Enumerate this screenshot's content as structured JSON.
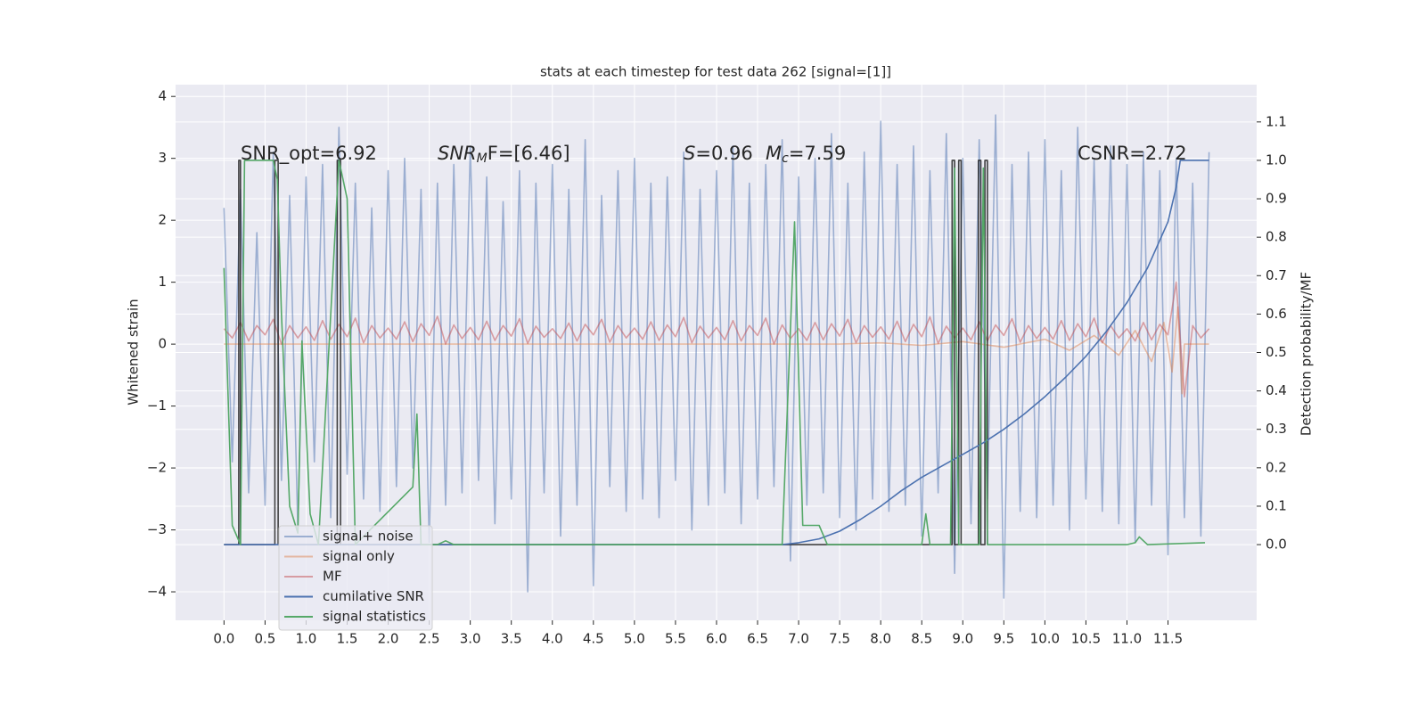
{
  "chart_data": {
    "type": "line",
    "title": "stats at each timestep for test data 262 [signal=[1]]",
    "ylabel": "Whitened strain",
    "y2label": "Detection probability/MF",
    "grid": true,
    "legend": "lower left",
    "xlim": [
      -0.59,
      12.58
    ],
    "ylim": [
      -4.46,
      4.19
    ],
    "y2lim": [
      -0.197,
      1.197
    ],
    "xticks": [
      {
        "value": 0,
        "label": "0.0"
      },
      {
        "value": 0.5,
        "label": "0.5"
      },
      {
        "value": 1,
        "label": "1.0"
      },
      {
        "value": 1.5,
        "label": "1.5"
      },
      {
        "value": 2,
        "label": "2.0"
      },
      {
        "value": 2.5,
        "label": "2.5"
      },
      {
        "value": 3,
        "label": "3.0"
      },
      {
        "value": 3.5,
        "label": "3.5"
      },
      {
        "value": 4,
        "label": "4.0"
      },
      {
        "value": 4.5,
        "label": "4.5"
      },
      {
        "value": 5,
        "label": "5.0"
      },
      {
        "value": 5.5,
        "label": "5.5"
      },
      {
        "value": 6,
        "label": "6.0"
      },
      {
        "value": 6.5,
        "label": "6.5"
      },
      {
        "value": 7,
        "label": "7.0"
      },
      {
        "value": 7.5,
        "label": "7.5"
      },
      {
        "value": 8,
        "label": "8.0"
      },
      {
        "value": 8.5,
        "label": "8.5"
      },
      {
        "value": 9,
        "label": "9.0"
      },
      {
        "value": 9.5,
        "label": "9.5"
      },
      {
        "value": 10,
        "label": "10.0"
      },
      {
        "value": 10.5,
        "label": "10.5"
      },
      {
        "value": 11,
        "label": "11.0"
      },
      {
        "value": 11.5,
        "label": "11.5"
      }
    ],
    "yticks": [
      {
        "value": -4,
        "label": "−4"
      },
      {
        "value": -3,
        "label": "−3"
      },
      {
        "value": -2,
        "label": "−2"
      },
      {
        "value": -1,
        "label": "−1"
      },
      0,
      1,
      2,
      3,
      4
    ],
    "y2ticks": [
      {
        "value": 0,
        "label": "0.0"
      },
      {
        "value": 0.1,
        "label": "0.1"
      },
      {
        "value": 0.2,
        "label": "0.2"
      },
      {
        "value": 0.3,
        "label": "0.3"
      },
      {
        "value": 0.4,
        "label": "0.4"
      },
      {
        "value": 0.5,
        "label": "0.5"
      },
      {
        "value": 0.6,
        "label": "0.6"
      },
      {
        "value": 0.7,
        "label": "0.7"
      },
      {
        "value": 0.8,
        "label": "0.8"
      },
      {
        "value": 0.9,
        "label": "0.9"
      },
      {
        "value": 1,
        "label": "1.0"
      },
      {
        "value": 1.1,
        "label": "1.1"
      }
    ],
    "annotations": [
      {
        "parts": [
          {
            "text": "SNR_opt=6.92"
          }
        ]
      },
      {
        "parts": [
          {
            "text": "SNR",
            "italic": true
          },
          {
            "text": "M",
            "italic": true,
            "sub": true
          },
          {
            "text": "F=[6.46]"
          }
        ]
      },
      {
        "parts": [
          {
            "text": "S",
            "italic": true
          },
          {
            "text": "=0.96"
          }
        ]
      },
      {
        "parts": [
          {
            "text": "M",
            "italic": true
          },
          {
            "text": "c",
            "italic": true,
            "sub": true
          },
          {
            "text": "=7.59"
          }
        ]
      },
      {
        "parts": [
          {
            "text": "CSNR=2.72"
          }
        ]
      }
    ],
    "x": [
      0,
      0.1,
      0.2,
      0.3,
      0.4,
      0.5,
      0.6,
      0.7,
      0.8,
      0.9,
      1,
      1.1,
      1.2,
      1.3,
      1.4,
      1.5,
      1.6,
      1.7,
      1.8,
      1.9,
      2,
      2.1,
      2.2,
      2.3,
      2.4,
      2.5,
      2.6,
      2.7,
      2.8,
      2.9,
      3,
      3.1,
      3.2,
      3.3,
      3.4,
      3.5,
      3.6,
      3.7,
      3.8,
      3.9,
      4,
      4.1,
      4.2,
      4.3,
      4.4,
      4.5,
      4.6,
      4.7,
      4.8,
      4.9,
      5,
      5.1,
      5.2,
      5.3,
      5.4,
      5.5,
      5.6,
      5.7,
      5.8,
      5.9,
      6,
      6.1,
      6.2,
      6.3,
      6.4,
      6.5,
      6.6,
      6.7,
      6.8,
      6.9,
      7,
      7.1,
      7.2,
      7.3,
      7.4,
      7.5,
      7.6,
      7.7,
      7.8,
      7.9,
      8,
      8.1,
      8.2,
      8.3,
      8.4,
      8.5,
      8.6,
      8.7,
      8.8,
      8.9,
      9,
      9.1,
      9.2,
      9.3,
      9.4,
      9.5,
      9.6,
      9.7,
      9.8,
      9.9,
      10,
      10.1,
      10.2,
      10.3,
      10.4,
      10.5,
      10.6,
      10.7,
      10.8,
      10.9,
      11,
      11.1,
      11.2,
      11.3,
      11.4,
      11.5,
      11.6,
      11.7,
      11.8,
      11.9,
      12
    ],
    "series": [
      {
        "name": "signal+ noise",
        "color": "#4c72b0",
        "opacity": 0.5,
        "values": [
          2.2,
          -1.9,
          2.5,
          -2.4,
          1.8,
          -2.6,
          3.1,
          -2.2,
          2.4,
          -3.0,
          2.7,
          -1.9,
          2.9,
          -2.8,
          3.5,
          -2.1,
          2.6,
          -2.5,
          2.2,
          -2.7,
          2.8,
          -2.3,
          3.0,
          -2.0,
          2.5,
          -3.2,
          2.6,
          -2.6,
          2.9,
          -2.4,
          3.2,
          -2.2,
          2.7,
          -2.9,
          2.3,
          -2.5,
          2.8,
          -4.0,
          2.6,
          -2.4,
          2.9,
          -3.1,
          2.5,
          -2.6,
          3.3,
          -3.9,
          2.4,
          -2.3,
          2.8,
          -2.7,
          3.0,
          -2.5,
          2.6,
          -2.8,
          2.7,
          -2.2,
          3.1,
          -3.0,
          2.5,
          -2.6,
          2.8,
          -2.4,
          3.2,
          -2.9,
          2.6,
          -2.5,
          2.9,
          -2.3,
          3.3,
          -3.5,
          2.7,
          -2.6,
          3.0,
          -2.4,
          3.4,
          -2.8,
          2.6,
          -3.0,
          3.1,
          -2.5,
          3.6,
          -2.7,
          2.9,
          -2.6,
          3.2,
          -3.1,
          2.8,
          -2.4,
          3.4,
          -3.7,
          3.0,
          -2.9,
          3.3,
          -2.5,
          3.7,
          -4.1,
          2.9,
          -2.7,
          3.1,
          -2.8,
          3.3,
          -2.6,
          2.8,
          -3.0,
          3.5,
          -2.5,
          3.0,
          -2.7,
          3.2,
          -2.9,
          2.9,
          -3.2,
          3.1,
          -2.6,
          2.8,
          -3.4,
          3.0,
          -2.8,
          2.6,
          -3.1,
          3.1
        ]
      },
      {
        "name": "signal only",
        "color": "#dd8452",
        "opacity": 0.5,
        "x": [
          0,
          7.5,
          8,
          8.5,
          9,
          9.5,
          10,
          10.3,
          10.6,
          10.9,
          11.1,
          11.3,
          11.45,
          11.55,
          11.62,
          11.67,
          11.7,
          12
        ],
        "values": [
          0,
          0,
          0.02,
          -0.02,
          0.04,
          -0.05,
          0.08,
          -0.1,
          0.14,
          -0.18,
          0.22,
          -0.28,
          0.35,
          -0.45,
          0.6,
          -0.8,
          0,
          0
        ]
      },
      {
        "name": "MF",
        "color": "#c44e52",
        "opacity": 0.5,
        "values": [
          0.25,
          0.1,
          0.35,
          0.05,
          0.3,
          0.15,
          0.4,
          0.0,
          0.3,
          0.1,
          0.28,
          0.06,
          0.38,
          0.08,
          0.32,
          0.12,
          0.42,
          0.02,
          0.3,
          0.1,
          0.26,
          0.08,
          0.36,
          0.04,
          0.33,
          0.14,
          0.45,
          0.0,
          0.31,
          0.09,
          0.27,
          0.07,
          0.37,
          0.06,
          0.3,
          0.13,
          0.41,
          0.01,
          0.29,
          0.11,
          0.25,
          0.09,
          0.34,
          0.05,
          0.32,
          0.15,
          0.4,
          0.03,
          0.3,
          0.1,
          0.26,
          0.08,
          0.36,
          0.06,
          0.31,
          0.12,
          0.43,
          0.02,
          0.29,
          0.1,
          0.27,
          0.07,
          0.38,
          0.05,
          0.3,
          0.14,
          0.42,
          0.0,
          0.31,
          0.09,
          0.25,
          0.06,
          0.35,
          0.07,
          0.33,
          0.13,
          0.4,
          0.02,
          0.3,
          0.11,
          0.28,
          0.08,
          0.37,
          0.04,
          0.32,
          0.12,
          0.44,
          0.01,
          0.29,
          0.1,
          0.26,
          0.07,
          0.36,
          0.05,
          0.31,
          0.14,
          0.41,
          0.03,
          0.3,
          0.09,
          0.27,
          0.08,
          0.38,
          0.06,
          0.33,
          0.12,
          0.42,
          0.02,
          0.3,
          0.1,
          0.25,
          0.05,
          0.35,
          0.07,
          0.32,
          0.15,
          1.0,
          -0.85,
          0.3,
          0.1,
          0.25
        ]
      },
      {
        "color": "#222222",
        "opacity": 0.85,
        "axis": "y2",
        "x": [
          0,
          0.18,
          0.18,
          0.2,
          0.2,
          0.62,
          0.62,
          0.66,
          0.66,
          1.38,
          1.38,
          1.42,
          1.42,
          8.87,
          8.87,
          8.9,
          8.9,
          8.95,
          8.95,
          8.98,
          8.98,
          9.19,
          9.19,
          9.22,
          9.22,
          9.27,
          9.27,
          9.3,
          9.3
        ],
        "values": [
          0,
          0,
          1,
          1,
          0,
          0,
          1,
          1,
          0,
          0,
          1,
          1,
          0,
          0,
          1,
          1,
          0,
          0,
          1,
          1,
          0,
          0,
          1,
          1,
          0,
          0,
          1,
          1,
          0
        ]
      },
      {
        "name": "cumilative SNR",
        "color": "#4c72b0",
        "opacity": 1,
        "axis": "y2",
        "x": [
          0,
          6.8,
          7.0,
          7.25,
          7.5,
          7.75,
          8.0,
          8.25,
          8.5,
          8.75,
          9.0,
          9.25,
          9.5,
          9.75,
          10.0,
          10.25,
          10.5,
          10.75,
          11.0,
          11.25,
          11.5,
          11.6,
          11.65,
          12.0
        ],
        "values": [
          0,
          0,
          0.005,
          0.015,
          0.035,
          0.065,
          0.1,
          0.14,
          0.175,
          0.205,
          0.235,
          0.265,
          0.3,
          0.34,
          0.385,
          0.435,
          0.49,
          0.555,
          0.63,
          0.72,
          0.84,
          0.93,
          1.0,
          1.0
        ]
      },
      {
        "name": "signal statistics",
        "color": "#55a868",
        "opacity": 1,
        "axis": "y2",
        "x": [
          0,
          0.1,
          0.2,
          0.25,
          0.3,
          0.6,
          0.65,
          0.7,
          0.8,
          0.9,
          0.95,
          1.05,
          1.15,
          1.4,
          1.5,
          1.6,
          2.3,
          2.35,
          2.4,
          2.6,
          2.7,
          2.8,
          6.8,
          6.95,
          7.05,
          7.15,
          7.25,
          7.35,
          8.5,
          8.55,
          8.6,
          8.85,
          8.9,
          8.95,
          9.0,
          9.1,
          9.2,
          9.25,
          9.3,
          11.0,
          11.1,
          11.15,
          11.25,
          11.95
        ],
        "values": [
          0.72,
          0.05,
          0,
          1.0,
          1.0,
          1.0,
          0.95,
          0.6,
          0.1,
          0.03,
          0.53,
          0.08,
          0.0,
          1.0,
          0.9,
          0.0,
          0.15,
          0.34,
          0.0,
          0.0,
          0.01,
          0.0,
          0.0,
          0.84,
          0.05,
          0.05,
          0.05,
          0.0,
          0.0,
          0.08,
          0.0,
          0.0,
          0.98,
          0.0,
          0.0,
          0.0,
          0.0,
          0.98,
          0.0,
          0.0,
          0.005,
          0.02,
          0.0,
          0.005
        ]
      }
    ]
  }
}
